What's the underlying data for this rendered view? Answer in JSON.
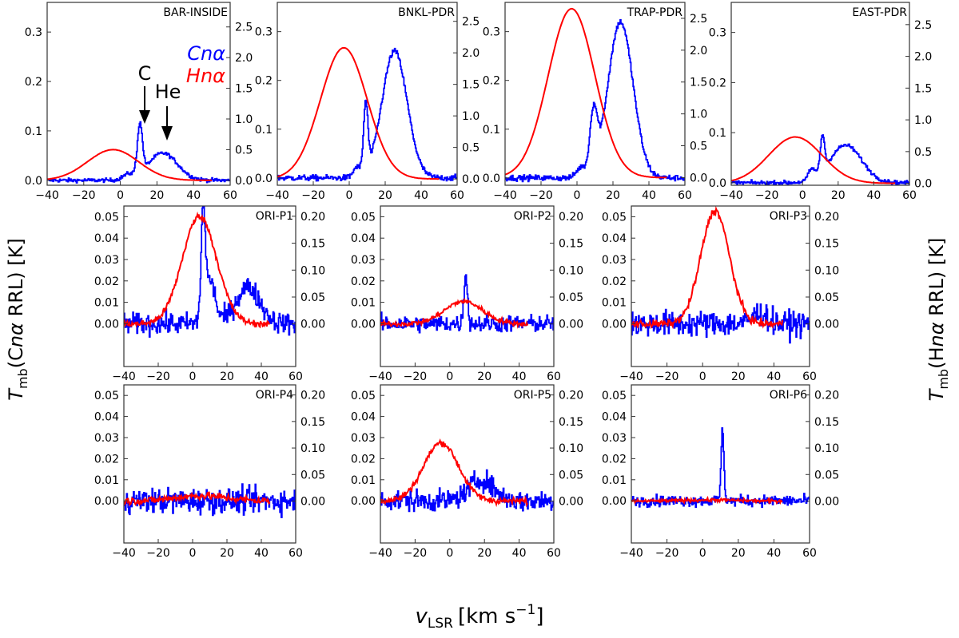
{
  "chart_data": {
    "type": "line",
    "xlabel": "v_LSR [km s^-1]",
    "xlabel_main": "v",
    "xlabel_sub": "LSR",
    "xlabel_unit": "[km s",
    "xlabel_exp": "−1",
    "xlabel_close": "]",
    "ylabel_left": "T_mb(Cnα RRL) [K]",
    "ylabel_left_parts": {
      "T": "T",
      "sub": "mb",
      "rest_pre": "(C",
      "n": "n",
      "alpha": "α",
      "rest_post": " RRL) [K]"
    },
    "ylabel_right": "T_mb(Hnα RRL) [K]",
    "ylabel_right_parts": {
      "T": "T",
      "sub": "mb",
      "rest_pre": "(H",
      "n": "n",
      "alpha": "α",
      "rest_post": " RRL) [K]"
    },
    "colors": {
      "C": "#0000ff",
      "H": "#ff0000"
    },
    "legend": {
      "c_label": "Cnα",
      "h_label": "Hnα",
      "position": "top-left panel, right side"
    },
    "annotations": {
      "c": "C",
      "he": "He"
    },
    "xlim": [
      -40,
      60
    ],
    "xticks": [
      -40,
      -20,
      0,
      20,
      40,
      60
    ],
    "panels": [
      {
        "title": "BAR-INSIDE",
        "ylim_left": [
          -0.01,
          0.36
        ],
        "ylim_right": [
          -0.08,
          2.9
        ],
        "yticks_left": [
          "0.0",
          "0.1",
          "0.2",
          "0.3"
        ],
        "yticks_right": [
          "0.0",
          "0.5",
          "1.0",
          "1.5",
          "2.0",
          "2.5"
        ],
        "c_components": [
          {
            "center": 10.5,
            "amp": 0.1,
            "sigma": 1.4
          },
          {
            "center": 23,
            "amp": 0.055,
            "sigma": 8
          },
          {
            "center": 4,
            "amp": 0.01,
            "sigma": 3
          }
        ],
        "c_noise": 0.002,
        "h_component": {
          "center": -4,
          "amp": 0.5,
          "sigma": 14
        },
        "h_range": [
          -40,
          50
        ]
      },
      {
        "title": "BNKL-PDR",
        "ylim_left": [
          -0.015,
          0.36
        ],
        "ylim_right": [
          -0.1,
          2.8
        ],
        "yticks_left": [
          "0.0",
          "0.1",
          "0.2",
          "0.3"
        ],
        "yticks_right": [
          "0.0",
          "0.5",
          "1.0",
          "1.5",
          "2.0",
          "2.5"
        ],
        "c_components": [
          {
            "center": 9,
            "amp": 0.14,
            "sigma": 1.2
          },
          {
            "center": 25,
            "amp": 0.26,
            "sigma": 7
          },
          {
            "center": 4,
            "amp": 0.02,
            "sigma": 2
          }
        ],
        "c_noise": 0.003,
        "h_component": {
          "center": -3,
          "amp": 2.08,
          "sigma": 13
        },
        "h_range": [
          -40,
          50
        ]
      },
      {
        "title": "TRAP-PDR",
        "ylim_left": [
          -0.015,
          0.36
        ],
        "ylim_right": [
          -0.12,
          2.75
        ],
        "yticks_left": [
          "0.0",
          "0.1",
          "0.2",
          "0.3"
        ],
        "yticks_right": [
          "0.0",
          "0.5",
          "1.0",
          "1.5",
          "2.0",
          "2.5"
        ],
        "c_components": [
          {
            "center": 24,
            "amp": 0.32,
            "sigma": 7
          },
          {
            "center": 9,
            "amp": 0.12,
            "sigma": 2
          },
          {
            "center": 2,
            "amp": 0.02,
            "sigma": 2.5
          }
        ],
        "c_noise": 0.003,
        "h_component": {
          "center": -3,
          "amp": 2.65,
          "sigma": 13
        },
        "h_range": [
          -40,
          50
        ]
      },
      {
        "title": "EAST-PDR",
        "ylim_left": [
          -0.005,
          0.36
        ],
        "ylim_right": [
          -0.03,
          2.85
        ],
        "yticks_left": [
          "0.0",
          "0.1",
          "0.2",
          "0.3"
        ],
        "yticks_right": [
          "0.0",
          "0.5",
          "1.0",
          "1.5",
          "2.0",
          "2.5"
        ],
        "c_components": [
          {
            "center": 11,
            "amp": 0.07,
            "sigma": 1.2
          },
          {
            "center": 24,
            "amp": 0.075,
            "sigma": 9
          },
          {
            "center": 5,
            "amp": 0.02,
            "sigma": 2
          }
        ],
        "c_noise": 0.002,
        "h_component": {
          "center": -4,
          "amp": 0.73,
          "sigma": 15
        },
        "h_range": [
          -40,
          52
        ]
      },
      {
        "title": "ORI-P1",
        "ylim_left": [
          -0.02,
          0.055
        ],
        "ylim_right": [
          -0.079,
          0.219
        ],
        "yticks_left": [
          "0.00",
          "0.01",
          "0.02",
          "0.03",
          "0.04",
          "0.05"
        ],
        "yticks_right": [
          "0.00",
          "0.05",
          "0.10",
          "0.15",
          "0.20"
        ],
        "c_components": [
          {
            "center": 6,
            "amp": 0.048,
            "sigma": 1.2
          },
          {
            "center": 10,
            "amp": 0.02,
            "sigma": 3
          },
          {
            "center": 32,
            "amp": 0.017,
            "sigma": 7
          }
        ],
        "c_noise": 0.0025,
        "h_component": {
          "center": 4,
          "amp": 0.2,
          "sigma": 10
        },
        "h_range": [
          -40,
          45
        ]
      },
      {
        "title": "ORI-P2",
        "ylim_left": [
          -0.02,
          0.055
        ],
        "ylim_right": [
          -0.079,
          0.219
        ],
        "yticks_left": [
          "0.00",
          "0.01",
          "0.02",
          "0.03",
          "0.04",
          "0.05"
        ],
        "yticks_right": [
          "0.00",
          "0.05",
          "0.10",
          "0.15",
          "0.20"
        ],
        "c_components": [
          {
            "center": 9,
            "amp": 0.024,
            "sigma": 1
          }
        ],
        "c_noise": 0.002,
        "h_component": {
          "center": 8,
          "amp": 0.042,
          "sigma": 11
        },
        "h_range": [
          -40,
          45
        ]
      },
      {
        "title": "ORI-P3",
        "ylim_left": [
          -0.02,
          0.055
        ],
        "ylim_right": [
          -0.079,
          0.219
        ],
        "yticks_left": [
          "0.00",
          "0.01",
          "0.02",
          "0.03",
          "0.04",
          "0.05"
        ],
        "yticks_right": [
          "0.00",
          "0.05",
          "0.10",
          "0.15",
          "0.20"
        ],
        "c_components": [
          {
            "center": 32,
            "amp": 0.005,
            "sigma": 4
          }
        ],
        "c_noise": 0.003,
        "h_component": {
          "center": 7,
          "amp": 0.21,
          "sigma": 8
        },
        "h_range": [
          -40,
          45
        ]
      },
      {
        "title": "ORI-P4",
        "ylim_left": [
          -0.02,
          0.055
        ],
        "ylim_right": [
          -0.079,
          0.219
        ],
        "yticks_left": [
          "0.00",
          "0.01",
          "0.02",
          "0.03",
          "0.04",
          "0.05"
        ],
        "yticks_right": [
          "0.00",
          "0.05",
          "0.10",
          "0.15",
          "0.20"
        ],
        "c_components": [],
        "c_noise": 0.003,
        "h_component": {
          "center": 5,
          "amp": 0.01,
          "sigma": 15
        },
        "h_range": [
          -40,
          45
        ]
      },
      {
        "title": "ORI-P5",
        "ylim_left": [
          -0.02,
          0.055
        ],
        "ylim_right": [
          -0.079,
          0.219
        ],
        "yticks_left": [
          "0.00",
          "0.01",
          "0.02",
          "0.03",
          "0.04",
          "0.05"
        ],
        "yticks_right": [
          "0.00",
          "0.05",
          "0.10",
          "0.15",
          "0.20"
        ],
        "c_components": [
          {
            "center": 18,
            "amp": 0.01,
            "sigma": 7
          }
        ],
        "c_noise": 0.0025,
        "h_component": {
          "center": -5,
          "amp": 0.11,
          "sigma": 10
        },
        "h_range": [
          -40,
          45
        ]
      },
      {
        "title": "ORI-P6",
        "ylim_left": [
          -0.02,
          0.055
        ],
        "ylim_right": [
          -0.079,
          0.219
        ],
        "yticks_left": [
          "0.00",
          "0.01",
          "0.02",
          "0.03",
          "0.04",
          "0.05"
        ],
        "yticks_right": [
          "0.00",
          "0.05",
          "0.10",
          "0.15",
          "0.20"
        ],
        "c_components": [
          {
            "center": 11,
            "amp": 0.033,
            "sigma": 0.8
          }
        ],
        "c_noise": 0.0013,
        "h_component": {
          "center": 5,
          "amp": 0.002,
          "sigma": 15
        },
        "h_range": [
          -40,
          45
        ]
      }
    ]
  }
}
